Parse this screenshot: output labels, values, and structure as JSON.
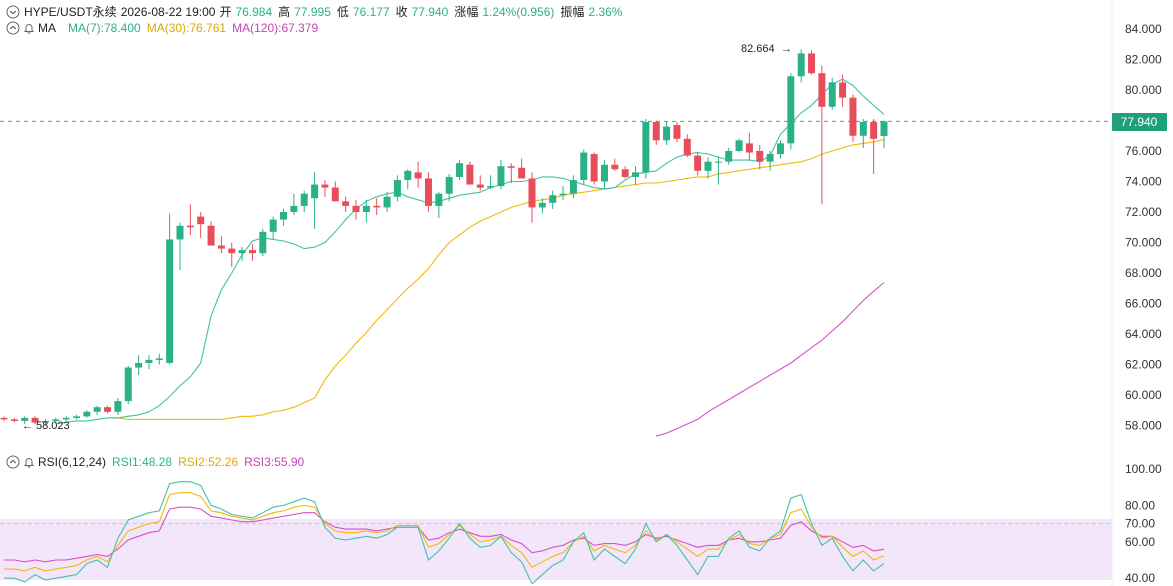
{
  "header": {
    "symbol": "HYPE/USDT永续",
    "datetime": "2026-08-22 19:00",
    "open_label": "开",
    "open": "76.984",
    "high_label": "高",
    "high": "77.995",
    "low_label": "低",
    "low": "76.177",
    "close_label": "收",
    "close": "77.940",
    "change_label": "涨幅",
    "change": "1.24%(0.956)",
    "amplitude_label": "振幅",
    "amplitude": "2.36%"
  },
  "ma_legend": {
    "label": "MA",
    "items": [
      {
        "text": "MA(7):78.400",
        "color": "#3fc3a6"
      },
      {
        "text": "MA(30):76.761",
        "color": "#f0b90b"
      },
      {
        "text": "MA(120):67.379",
        "color": "#d84fc6"
      }
    ]
  },
  "rsi_legend": {
    "label": "RSI(6,12,24)",
    "items": [
      {
        "text": "RSI1:48.28",
        "color": "#3fc3a6"
      },
      {
        "text": "RSI2:52.26",
        "color": "#f0b90b"
      },
      {
        "text": "RSI3:55.90",
        "color": "#d84fc6"
      }
    ]
  },
  "chart_data": [
    {
      "type": "candlestick",
      "y_ticks": [
        "84.000",
        "82.000",
        "80.000",
        "78.000",
        "76.000",
        "74.000",
        "72.000",
        "70.000",
        "68.000",
        "66.000",
        "64.000",
        "62.000",
        "60.000",
        "58.000"
      ],
      "ylim": [
        57.3,
        85
      ],
      "current_price": "77.940",
      "high_marker": "82.664",
      "low_marker": "58.023",
      "colors": {
        "up": "#2ab188",
        "down": "#e84e5a",
        "ma7": "#3fc3a6",
        "ma30": "#f0b90b",
        "ma120": "#d84fc6"
      },
      "candles": [
        [
          58.5,
          58.6,
          58.3,
          58.4
        ],
        [
          58.4,
          58.5,
          58.2,
          58.3
        ],
        [
          58.3,
          58.6,
          58.1,
          58.5
        ],
        [
          58.5,
          58.6,
          58.1,
          58.2
        ],
        [
          58.2,
          58.4,
          58.0,
          58.3
        ],
        [
          58.3,
          58.5,
          58.2,
          58.4
        ],
        [
          58.4,
          58.6,
          58.3,
          58.5
        ],
        [
          58.5,
          58.7,
          58.4,
          58.6
        ],
        [
          58.6,
          59.0,
          58.5,
          58.9
        ],
        [
          58.9,
          59.3,
          58.7,
          59.2
        ],
        [
          59.2,
          59.3,
          58.8,
          58.9
        ],
        [
          58.9,
          59.8,
          58.7,
          59.6
        ],
        [
          59.6,
          61.9,
          59.4,
          61.8
        ],
        [
          61.8,
          62.6,
          61.3,
          62.1
        ],
        [
          62.1,
          62.6,
          61.7,
          62.3
        ],
        [
          62.3,
          62.7,
          62.0,
          62.4
        ],
        [
          62.1,
          71.9,
          62.0,
          70.2
        ],
        [
          70.2,
          71.3,
          68.2,
          71.1
        ],
        [
          71.1,
          72.5,
          70.5,
          71.0
        ],
        [
          71.7,
          72.0,
          70.3,
          71.2
        ],
        [
          71.1,
          71.4,
          69.8,
          69.8
        ],
        [
          69.8,
          70.4,
          69.3,
          69.6
        ],
        [
          69.6,
          70.0,
          68.4,
          69.3
        ],
        [
          69.3,
          69.7,
          68.8,
          69.5
        ],
        [
          69.5,
          69.9,
          68.8,
          69.3
        ],
        [
          69.3,
          70.9,
          69.1,
          70.7
        ],
        [
          70.7,
          71.7,
          70.2,
          71.5
        ],
        [
          71.5,
          72.2,
          71.1,
          72.0
        ],
        [
          72.0,
          73.2,
          71.8,
          72.4
        ],
        [
          72.4,
          73.4,
          72.0,
          73.2
        ],
        [
          72.9,
          74.6,
          70.9,
          73.8
        ],
        [
          73.8,
          74.1,
          73.0,
          73.6
        ],
        [
          73.6,
          74.0,
          72.7,
          72.7
        ],
        [
          72.7,
          73.0,
          72.0,
          72.4
        ],
        [
          72.4,
          72.8,
          71.5,
          72.0
        ],
        [
          72.0,
          72.8,
          71.3,
          72.4
        ],
        [
          72.4,
          72.9,
          71.8,
          72.3
        ],
        [
          72.3,
          73.3,
          72.0,
          73.0
        ],
        [
          73.0,
          74.4,
          72.7,
          74.1
        ],
        [
          74.1,
          74.8,
          73.5,
          74.7
        ],
        [
          74.6,
          75.3,
          73.6,
          74.2
        ],
        [
          74.2,
          74.6,
          72.0,
          72.4
        ],
        [
          72.4,
          73.3,
          71.6,
          73.2
        ],
        [
          73.2,
          74.5,
          72.7,
          74.3
        ],
        [
          74.3,
          75.4,
          74.1,
          75.2
        ],
        [
          75.1,
          75.3,
          73.8,
          73.8
        ],
        [
          73.8,
          74.4,
          73.4,
          73.6
        ],
        [
          73.6,
          74.4,
          73.5,
          73.7
        ],
        [
          73.7,
          75.4,
          73.5,
          75.0
        ],
        [
          75.0,
          75.2,
          73.9,
          74.9
        ],
        [
          74.9,
          75.5,
          74.3,
          74.2
        ],
        [
          74.2,
          74.6,
          71.3,
          72.3
        ],
        [
          72.3,
          72.9,
          71.9,
          72.6
        ],
        [
          72.6,
          73.4,
          72.2,
          73.1
        ],
        [
          73.1,
          73.7,
          72.8,
          73.2
        ],
        [
          73.2,
          74.4,
          72.9,
          74.1
        ],
        [
          74.1,
          76.1,
          73.8,
          75.9
        ],
        [
          75.8,
          75.9,
          73.8,
          74.0
        ],
        [
          74.0,
          75.4,
          73.5,
          75.1
        ],
        [
          75.1,
          75.5,
          74.7,
          74.8
        ],
        [
          74.8,
          75.0,
          74.2,
          74.3
        ],
        [
          74.3,
          75.0,
          73.8,
          74.6
        ],
        [
          74.6,
          78.1,
          74.2,
          77.9
        ],
        [
          77.9,
          78.0,
          76.4,
          76.7
        ],
        [
          76.7,
          77.9,
          76.4,
          77.6
        ],
        [
          77.7,
          77.9,
          76.6,
          76.8
        ],
        [
          76.8,
          77.1,
          75.6,
          75.7
        ],
        [
          75.7,
          75.9,
          74.4,
          74.7
        ],
        [
          74.7,
          75.6,
          74.2,
          75.3
        ],
        [
          75.3,
          75.6,
          73.8,
          75.3
        ],
        [
          75.3,
          76.2,
          75.1,
          76.0
        ],
        [
          76.0,
          76.8,
          75.9,
          76.7
        ],
        [
          76.5,
          77.2,
          75.4,
          75.9
        ],
        [
          76.0,
          76.4,
          74.8,
          75.3
        ],
        [
          75.3,
          76.0,
          74.7,
          75.8
        ],
        [
          75.8,
          76.7,
          75.5,
          76.5
        ],
        [
          76.5,
          81.1,
          76.1,
          80.9
        ],
        [
          80.9,
          82.664,
          80.5,
          82.4
        ],
        [
          82.4,
          82.6,
          81.0,
          81.1
        ],
        [
          81.1,
          81.6,
          72.5,
          78.9
        ],
        [
          78.9,
          80.8,
          78.7,
          80.5
        ],
        [
          80.5,
          81.0,
          78.9,
          79.5
        ],
        [
          79.5,
          79.7,
          76.6,
          77.0
        ],
        [
          77.0,
          78.1,
          76.2,
          77.9
        ],
        [
          77.9,
          78.1,
          74.5,
          76.8
        ],
        [
          76.984,
          77.995,
          76.177,
          77.94
        ]
      ],
      "ma7": [
        58.1,
        58.2,
        58.3,
        58.3,
        58.4,
        58.5,
        58.5,
        58.6,
        58.7,
        58.9,
        59.3,
        59.9,
        60.6,
        61.2,
        62.1,
        65.2,
        66.9,
        68.0,
        69.2,
        70.1,
        70.3,
        70.2,
        70.1,
        69.9,
        69.6,
        69.7,
        70.0,
        70.7,
        71.5,
        72.2,
        72.7,
        73.0,
        73.2,
        73.3,
        73.0,
        72.8,
        72.6,
        72.7,
        72.9,
        73.1,
        73.2,
        73.3,
        73.6,
        73.8,
        74.0,
        74.0,
        74.1,
        74.3,
        74.3,
        74.2,
        74.0,
        73.8,
        73.6,
        73.5,
        73.6,
        74.1,
        74.5,
        74.6,
        74.7,
        75.2,
        75.6,
        75.8,
        75.9,
        75.8,
        75.6,
        75.4,
        75.4,
        75.4,
        75.3,
        75.7,
        77.1,
        77.8,
        78.5,
        79.0,
        79.7,
        80.4,
        80.7,
        80.3,
        79.6,
        79.0,
        78.4
      ],
      "ma30": [
        58.5,
        58.5,
        58.4,
        58.4,
        58.4,
        58.4,
        58.4,
        58.4,
        58.4,
        58.4,
        58.4,
        58.4,
        58.5,
        58.6,
        58.6,
        58.7,
        58.9,
        59.0,
        59.2,
        59.5,
        59.8,
        61.0,
        61.9,
        62.6,
        63.4,
        64.1,
        64.9,
        65.6,
        66.3,
        67.0,
        67.6,
        68.3,
        69.2,
        70.0,
        70.5,
        71.0,
        71.4,
        71.7,
        72.0,
        72.3,
        72.5,
        72.7,
        72.8,
        72.9,
        73.1,
        73.2,
        73.3,
        73.4,
        73.5,
        73.6,
        73.7,
        73.8,
        73.9,
        73.9,
        74.0,
        74.1,
        74.2,
        74.3,
        74.3,
        74.5,
        74.6,
        74.7,
        74.8,
        74.9,
        75.0,
        75.1,
        75.2,
        75.3,
        75.5,
        75.8,
        76.0,
        76.2,
        76.4,
        76.5,
        76.6,
        76.761
      ],
      "ma120": [
        57.3,
        57.5,
        57.8,
        58.1,
        58.4,
        58.9,
        59.3,
        59.7,
        60.1,
        60.5,
        60.9,
        61.3,
        61.7,
        62.1,
        62.6,
        63.1,
        63.6,
        64.2,
        64.8,
        65.5,
        66.2,
        66.8,
        67.379
      ],
      "rsi_ticks": [
        "100.00",
        "80.00",
        "70.00",
        "60.00",
        "40.00"
      ],
      "rsi_levels": [
        70,
        30
      ],
      "rsi1": [
        40,
        40,
        38,
        42,
        39,
        40,
        41,
        42,
        48,
        50,
        46,
        62,
        72,
        74,
        76,
        77,
        92,
        93,
        93,
        91,
        80,
        78,
        75,
        74,
        73,
        76,
        79,
        80,
        82,
        84,
        82,
        68,
        62,
        61,
        62,
        63,
        62,
        64,
        68,
        68,
        68,
        50,
        55,
        62,
        70,
        62,
        57,
        58,
        63,
        54,
        49,
        37,
        42,
        47,
        50,
        60,
        65,
        50,
        56,
        52,
        48,
        56,
        70,
        60,
        64,
        58,
        50,
        42,
        52,
        52,
        62,
        66,
        57,
        55,
        62,
        66,
        84,
        86,
        70,
        58,
        62,
        52,
        44,
        50,
        44,
        48
      ],
      "rsi2": [
        45,
        45,
        44,
        46,
        44,
        45,
        46,
        47,
        50,
        52,
        49,
        58,
        66,
        68,
        70,
        71,
        86,
        87,
        87,
        85,
        77,
        76,
        74,
        73,
        72,
        74,
        76,
        77,
        79,
        80,
        79,
        70,
        66,
        65,
        65,
        66,
        65,
        66,
        69,
        69,
        69,
        57,
        59,
        64,
        69,
        64,
        60,
        61,
        63,
        58,
        54,
        46,
        49,
        52,
        54,
        60,
        63,
        55,
        58,
        56,
        54,
        58,
        66,
        61,
        64,
        60,
        56,
        52,
        56,
        56,
        61,
        64,
        59,
        58,
        62,
        64,
        76,
        78,
        68,
        62,
        63,
        57,
        52,
        55,
        50,
        52.26
      ],
      "rsi3": [
        50,
        50,
        49,
        50,
        49,
        50,
        50,
        51,
        52,
        53,
        52,
        56,
        61,
        63,
        65,
        66,
        78,
        79,
        79,
        78,
        74,
        73,
        72,
        71,
        71,
        72,
        73,
        74,
        75,
        76,
        76,
        71,
        68,
        67,
        67,
        67,
        66,
        67,
        68,
        68,
        68,
        61,
        62,
        65,
        67,
        65,
        63,
        63,
        64,
        61,
        59,
        54,
        55,
        57,
        58,
        61,
        62,
        58,
        59,
        59,
        58,
        60,
        64,
        62,
        63,
        61,
        59,
        57,
        58,
        58,
        61,
        62,
        60,
        60,
        61,
        62,
        69,
        71,
        66,
        63,
        63,
        60,
        57,
        58,
        55,
        55.9
      ]
    }
  ]
}
